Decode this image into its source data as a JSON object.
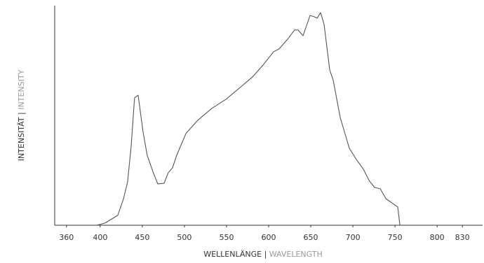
{
  "chart_data": {
    "type": "line",
    "xlabel": [
      "WELLENLÄNGE |",
      "WAVELENGTH"
    ],
    "ylabel": [
      "INTENSITÄT |",
      "INTENSITY"
    ],
    "xlim": [
      346,
      854
    ],
    "ylim": [
      0,
      100
    ],
    "xticks": [
      360,
      400,
      450,
      500,
      550,
      600,
      650,
      700,
      750,
      800,
      830
    ],
    "series": [
      {
        "color": "#555555",
        "x": [
          395.8,
          405.8,
          420.8,
          427.5,
          432.5,
          436.7,
          440.8,
          445,
          447.5,
          450.8,
          455.8,
          462.5,
          468.3,
          475.8,
          480.8,
          485.8,
          490.8,
          501.7,
          515.8,
          532.5,
          549.2,
          564.2,
          580.8,
          593.3,
          605.8,
          612.5,
          622.5,
          630.8,
          635,
          640.8,
          649.2,
          654.2,
          657.5,
          661.7,
          665.8,
          672.5,
          676.7,
          685,
          695.8,
          704.2,
          712.5,
          719.2,
          725.8,
          732.5,
          739.2,
          753.3,
          755.8
        ],
        "values": [
          0,
          1,
          4.5,
          11.8,
          19.7,
          35.7,
          58,
          59.2,
          52.2,
          42.7,
          31.8,
          24.5,
          18.8,
          19.1,
          23.9,
          26.1,
          31.8,
          41.7,
          47.8,
          53.2,
          57.3,
          62.1,
          67.5,
          72.9,
          79,
          80.3,
          84.7,
          88.9,
          88.9,
          86.3,
          95.5,
          94.9,
          94.3,
          96.8,
          91.4,
          70.7,
          65.9,
          49,
          35,
          29.9,
          25.5,
          20.4,
          17.2,
          16.6,
          12.1,
          8.3,
          0
        ]
      }
    ]
  }
}
